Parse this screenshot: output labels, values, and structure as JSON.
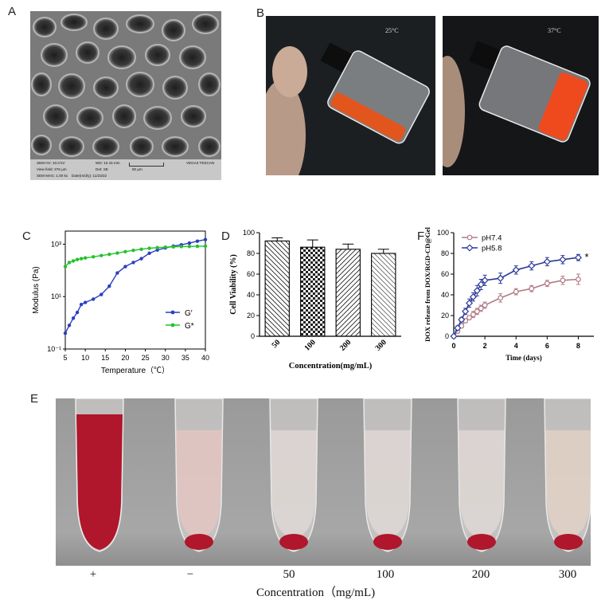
{
  "panel_labels": {
    "a": "A",
    "b": "B",
    "c": "C",
    "d": "D",
    "e": "E",
    "f": "F"
  },
  "sem": {
    "hv": "SEM HV: 10.0 kV",
    "wd": "WD: 10.15 mm",
    "vega": "VEGA3 TESCAN",
    "vf": "View field: 276 μm",
    "det": "Det: SE",
    "scale": "50 μm",
    "mag": "SEM MAG: 1.00 kx",
    "date": "Date(m/d/y): 11/23/22"
  },
  "vials": {
    "left_temp": "25°C",
    "right_temp": "37°C"
  },
  "colors": {
    "g_prime": "#2b3fbf",
    "g_double": "#22c22a",
    "ph74": "#b07c86",
    "ph58": "#2c3a9a",
    "blood": "#b0162c"
  },
  "hemolysis": {
    "labels": [
      "+",
      "−",
      "50",
      "100",
      "200",
      "300"
    ],
    "axis_title": "Concentration（mg/mL)"
  },
  "chart_data": [
    {
      "id": "C",
      "type": "line",
      "title": "",
      "xlabel": "Temperature（℃）",
      "ylabel": "Modulus (Pa)",
      "xlim": [
        5,
        40
      ],
      "ylim_log10": [
        -1,
        3.5
      ],
      "y_scale": "log",
      "x_ticks": [
        "5",
        "10",
        "15",
        "20",
        "25",
        "30",
        "35",
        "40"
      ],
      "y_ticks": [
        "10⁻¹",
        "10¹",
        "10³"
      ],
      "legend_position": "right-middle",
      "series": [
        {
          "name": "G′",
          "x": [
            5,
            6,
            7,
            8,
            9,
            10,
            12,
            14,
            16,
            18,
            20,
            22,
            24,
            26,
            28,
            30,
            32,
            34,
            36,
            38,
            40
          ],
          "y": [
            0.4,
            0.8,
            1.5,
            2.5,
            5,
            6,
            8,
            12,
            25,
            80,
            140,
            200,
            280,
            450,
            600,
            720,
            850,
            950,
            1100,
            1300,
            1500
          ]
        },
        {
          "name": "G*",
          "x": [
            5,
            6,
            7,
            8,
            9,
            10,
            12,
            14,
            16,
            18,
            20,
            22,
            24,
            26,
            28,
            30,
            32,
            34,
            36,
            38,
            40
          ],
          "y": [
            140,
            200,
            230,
            260,
            280,
            300,
            330,
            370,
            410,
            460,
            520,
            580,
            640,
            700,
            740,
            770,
            790,
            810,
            820,
            830,
            840
          ]
        }
      ]
    },
    {
      "id": "D",
      "type": "bar",
      "title": "",
      "xlabel": "Concentration(mg/mL)",
      "ylabel": "Cell Viability (%)",
      "categories": [
        "50",
        "100",
        "200",
        "300"
      ],
      "values": [
        92,
        86,
        84,
        80
      ],
      "errors": [
        3,
        7,
        5,
        4
      ],
      "ylim": [
        0,
        100
      ],
      "y_ticks": [
        "0",
        "20",
        "40",
        "60",
        "80",
        "100"
      ]
    },
    {
      "id": "F",
      "type": "line",
      "title": "",
      "xlabel": "Time (days)",
      "ylabel": "DOX release from DOX/RGD-CD@Gel",
      "xlim": [
        0,
        9
      ],
      "ylim": [
        0,
        100
      ],
      "x_ticks": [
        "0",
        "2",
        "4",
        "6",
        "8"
      ],
      "y_ticks": [
        "0",
        "20",
        "40",
        "60",
        "80",
        "100"
      ],
      "legend_position": "top-left",
      "annotation": "*",
      "series": [
        {
          "name": "pH7.4",
          "x": [
            0,
            0.25,
            0.5,
            0.75,
            1,
            1.25,
            1.5,
            1.75,
            2,
            3,
            4,
            5,
            6,
            7,
            8
          ],
          "y": [
            0,
            5,
            10,
            15,
            18,
            21,
            24,
            27,
            30,
            37,
            43,
            46,
            51,
            54,
            55
          ],
          "err": [
            0,
            2,
            2,
            2,
            2,
            3,
            3,
            3,
            3,
            4,
            3,
            3,
            3,
            4,
            5
          ]
        },
        {
          "name": "pH5.8",
          "x": [
            0,
            0.25,
            0.5,
            0.75,
            1,
            1.25,
            1.5,
            1.75,
            2,
            3,
            4,
            5,
            6,
            7,
            8
          ],
          "y": [
            0,
            8,
            16,
            24,
            32,
            38,
            44,
            50,
            54,
            56,
            64,
            68,
            72,
            74,
            76
          ],
          "err": [
            0,
            2,
            2,
            3,
            4,
            4,
            5,
            5,
            5,
            5,
            4,
            4,
            4,
            4,
            3
          ]
        }
      ]
    }
  ]
}
